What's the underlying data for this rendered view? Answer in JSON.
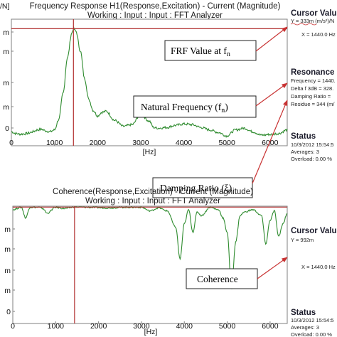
{
  "charts": [
    {
      "type": "line",
      "title_line1": "Frequency Response H1(Response,Excitation) - Current (Magnitude)",
      "title_line2": "Working : Input : Input : FFT Analyzer",
      "ylabel_fragment": "/N]",
      "xlabel": "[Hz]",
      "xlim": [
        0,
        6400
      ],
      "x_ticks": [
        "0",
        "1000",
        "2000",
        "3000",
        "4000",
        "5000",
        "6000"
      ],
      "y_ticks": [
        "m",
        "m",
        "m",
        "m",
        "0"
      ],
      "cursor_x": 1440,
      "cursor_y_level": 0.333,
      "cursor_panel": {
        "heading": "Cursor Valu",
        "line1": "Y = 333m (m/s²)/N",
        "line2": "X = 1440.0 Hz"
      },
      "resonance_panel": {
        "heading": "Resonance",
        "lines": [
          "Frequency = 1440.",
          "Delta f 3dB = 328.",
          "Damping Ratio =",
          "Residue = 344 (m/"
        ]
      },
      "status_panel": {
        "heading": "Status",
        "lines": [
          "10/3/2012 15:54:5",
          "Averages: 3",
          "Overload: 0.00 %"
        ]
      },
      "callouts": {
        "frf_prefix": "FRF Value at f",
        "frf_sub": "n",
        "natfreq_prefix": "Natural Frequency (f",
        "natfreq_sub": "n",
        "natfreq_suffix": ")",
        "damping": "Damping Ratio (ξ)"
      },
      "colors": {
        "series": "#2e8b2e",
        "cursor": "#b23030",
        "callout_arrow": "#c83232",
        "frame": "#7f7f7f"
      }
    },
    {
      "type": "line",
      "title_line1": "Coherence(Response,Excitation) - Current (Magnitude)",
      "title_line2": "Working : Input : Input : FFT Analyzer",
      "xlabel": "[Hz]",
      "xlim": [
        0,
        6400
      ],
      "x_ticks": [
        "0",
        "1000",
        "2000",
        "3000",
        "4000",
        "5000",
        "6000"
      ],
      "y_ticks": [
        "m",
        "m",
        "m",
        "m",
        "0"
      ],
      "cursor_x": 1440,
      "cursor_y_level": 0.992,
      "cursor_panel": {
        "heading": "Cursor Valu",
        "line1": "Y = 992m",
        "line2": "X = 1440.0 Hz"
      },
      "status_panel": {
        "heading": "Status",
        "lines": [
          "10/3/2012 15:54:5",
          "Averages: 3",
          "Overload: 0.00 %"
        ]
      },
      "callouts": {
        "coherence": "Coherence"
      },
      "colors": {
        "series": "#2e8b2e",
        "cursor": "#b23030",
        "callout_arrow": "#c83232",
        "frame": "#7f7f7f"
      }
    }
  ],
  "chart_data": [
    {
      "type": "line",
      "title": "Frequency Response H1(Response,Excitation) - Current (Magnitude)",
      "xlabel": "[Hz]",
      "xlim": [
        0,
        6400
      ],
      "ylim": [
        0,
        0.36
      ],
      "series": [
        {
          "x": [
            0,
            100,
            200,
            300,
            400,
            500,
            600,
            700,
            800,
            900,
            1000,
            1100,
            1200,
            1300,
            1400,
            1440,
            1500,
            1600,
            1700,
            1800,
            1900,
            2000,
            2100,
            2200,
            2400,
            2600,
            2800,
            3000,
            3200,
            3300,
            3400,
            3600,
            3800,
            4000,
            4200,
            4400,
            4600,
            4800,
            5000,
            5200,
            5400,
            5600,
            5800,
            6000,
            6200,
            6400
          ],
          "values": [
            0.04,
            0.035,
            0.033,
            0.034,
            0.036,
            0.04,
            0.045,
            0.047,
            0.042,
            0.04,
            0.045,
            0.075,
            0.15,
            0.25,
            0.32,
            0.333,
            0.325,
            0.27,
            0.19,
            0.13,
            0.1,
            0.085,
            0.095,
            0.098,
            0.072,
            0.055,
            0.06,
            0.09,
            0.07,
            0.052,
            0.05,
            0.052,
            0.058,
            0.062,
            0.06,
            0.052,
            0.045,
            0.038,
            0.028,
            0.045,
            0.05,
            0.04,
            0.03,
            0.032,
            0.035,
            0.045
          ]
        }
      ]
    },
    {
      "type": "line",
      "title": "Coherence(Response,Excitation) - Current (Magnitude)",
      "xlabel": "[Hz]",
      "xlim": [
        0,
        6400
      ],
      "ylim": [
        0,
        1.0
      ],
      "series": [
        {
          "x": [
            0,
            200,
            300,
            400,
            600,
            700,
            800,
            1000,
            1200,
            1440,
            1800,
            2200,
            2600,
            3000,
            3200,
            3400,
            3600,
            3800,
            3900,
            4000,
            4100,
            4200,
            4300,
            4400,
            4600,
            4800,
            4900,
            5000,
            5100,
            5200,
            5300,
            5400,
            5600,
            5800,
            5900,
            6000,
            6100,
            6200,
            6300,
            6400
          ],
          "values": [
            0.97,
            0.99,
            0.9,
            0.99,
            0.99,
            0.98,
            0.94,
            0.99,
            0.98,
            0.992,
            0.99,
            0.985,
            0.99,
            0.99,
            0.96,
            0.985,
            0.96,
            0.82,
            0.55,
            0.85,
            0.97,
            0.78,
            0.95,
            0.92,
            0.99,
            0.97,
            0.9,
            0.78,
            0.3,
            0.7,
            0.92,
            0.95,
            0.97,
            0.92,
            0.68,
            0.88,
            0.96,
            0.74,
            0.85,
            0.94
          ]
        }
      ]
    }
  ]
}
